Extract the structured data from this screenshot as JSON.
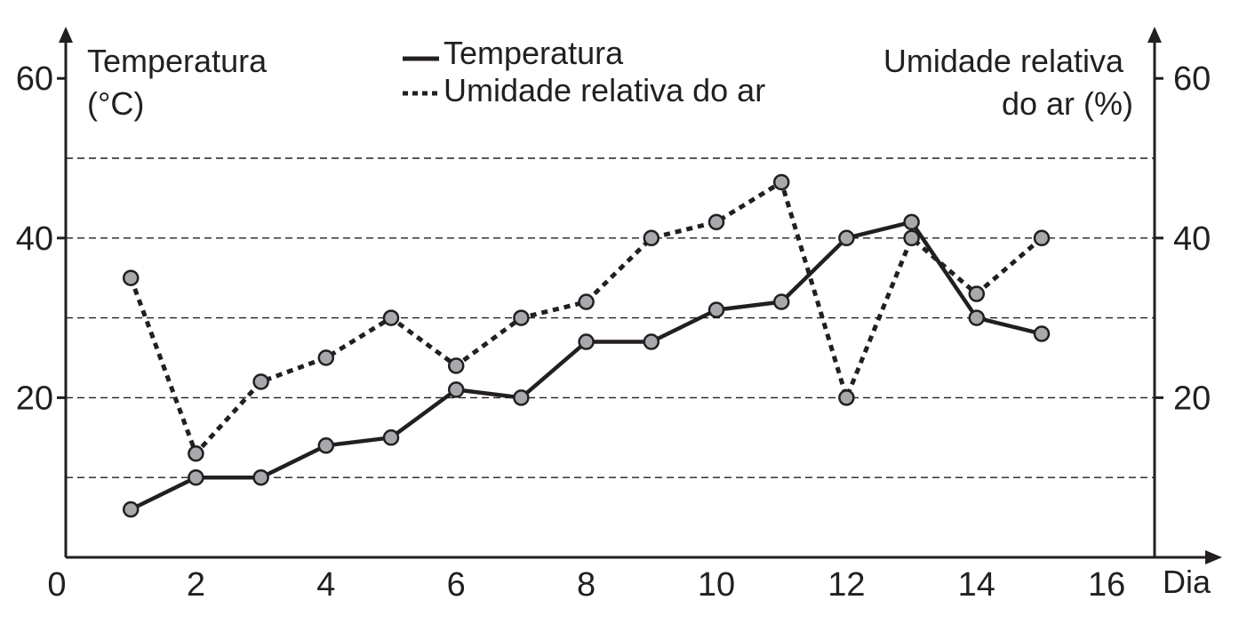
{
  "chart_data": {
    "type": "line",
    "y_left_label_lines": [
      "Temperatura",
      "(°C)"
    ],
    "y_right_label_lines": [
      "Umidade relativa",
      "do ar (%)"
    ],
    "xlabel": "Dia",
    "x_ticks": [
      0,
      2,
      4,
      6,
      8,
      10,
      12,
      14,
      16
    ],
    "x_tick_labels": [
      "0",
      "2",
      "4",
      "6",
      "8",
      "10",
      "12",
      "14",
      "16"
    ],
    "y_ticks": [
      20,
      40,
      60
    ],
    "y_left_tick_labels": [
      "20",
      "40",
      "60"
    ],
    "y_right_tick_labels": [
      "20",
      "40",
      "60"
    ],
    "xlim": [
      0,
      17
    ],
    "ylim": [
      0,
      65
    ],
    "grid_y": [
      10,
      20,
      30,
      40,
      50
    ],
    "legend_position": "top-center",
    "series": [
      {
        "name": "Temperatura",
        "style": "solid",
        "x": [
          1,
          2,
          3,
          4,
          5,
          6,
          7,
          8,
          9,
          10,
          11,
          12,
          13,
          14,
          15
        ],
        "values": [
          6,
          10,
          10,
          14,
          15,
          21,
          20,
          27,
          27,
          31,
          32,
          40,
          42,
          30,
          28
        ]
      },
      {
        "name": "Umidade relativa do ar",
        "style": "dotted",
        "x": [
          1,
          2,
          3,
          4,
          5,
          6,
          7,
          8,
          9,
          10,
          11,
          12,
          13,
          14,
          15
        ],
        "values": [
          35,
          13,
          22,
          25,
          30,
          24,
          30,
          32,
          40,
          42,
          47,
          20,
          40,
          33,
          40
        ]
      }
    ],
    "colors": {
      "line": "#231f20",
      "marker_fill": "#a7a9ac",
      "grid": "#231f20"
    }
  }
}
